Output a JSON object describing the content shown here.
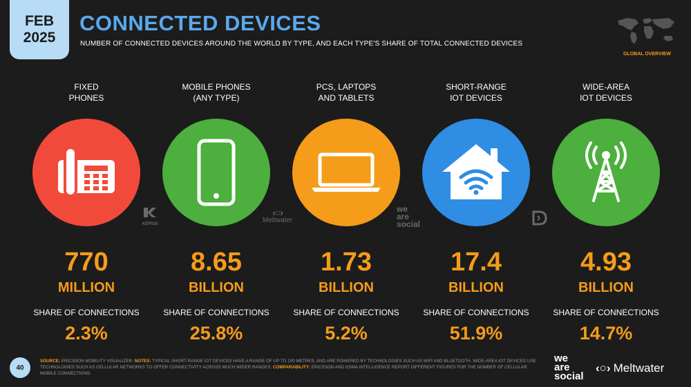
{
  "date_badge": {
    "month": "FEB",
    "year": "2025"
  },
  "title": "CONNECTED DEVICES",
  "subtitle": "NUMBER OF CONNECTED DEVICES AROUND THE WORLD BY TYPE, AND EACH TYPE'S SHARE OF TOTAL CONNECTED DEVICES",
  "global_label": "GLOBAL OVERVIEW",
  "columns": [
    {
      "category_line1": "FIXED",
      "category_line2": "PHONES",
      "icon": "telephone-icon",
      "color": "#f24a3a",
      "value": "770",
      "unit": "MILLION",
      "share_label": "SHARE OF CONNECTIONS",
      "share": "2.3%"
    },
    {
      "category_line1": "MOBILE PHONES",
      "category_line2": "(ANY TYPE)",
      "icon": "smartphone-icon",
      "color": "#4caf3e",
      "value": "8.65",
      "unit": "BILLION",
      "share_label": "SHARE OF CONNECTIONS",
      "share": "25.8%"
    },
    {
      "category_line1": "PCS, LAPTOPS",
      "category_line2": "AND TABLETS",
      "icon": "laptop-icon",
      "color": "#f59c1a",
      "value": "1.73",
      "unit": "BILLION",
      "share_label": "SHARE OF CONNECTIONS",
      "share": "5.2%"
    },
    {
      "category_line1": "SHORT-RANGE",
      "category_line2": "IOT DEVICES",
      "icon": "smart-home-wifi-icon",
      "color": "#2f8de4",
      "value": "17.4",
      "unit": "BILLION",
      "share_label": "SHARE OF CONNECTIONS",
      "share": "51.9%"
    },
    {
      "category_line1": "WIDE-AREA",
      "category_line2": "IOT DEVICES",
      "icon": "radio-tower-icon",
      "color": "#4caf3e",
      "value": "4.93",
      "unit": "BILLION",
      "share_label": "SHARE OF CONNECTIONS",
      "share": "14.7%"
    }
  ],
  "watermarks": {
    "kepios": "KEPIOS",
    "meltwater": "Meltwater",
    "we": "we",
    "are": "are",
    "social": "social"
  },
  "footer": {
    "page_number": "40",
    "source_key": "SOURCE:",
    "source_text": " ERICSSON MOBILITY VISUALIZER. ",
    "notes_key": "NOTES:",
    "notes_text": " TYPICAL SHORT-RANGE IOT DEVICES HAVE A RANGE OF UP TO 100 METRES, AND ARE POWERED BY TECHNOLOGIES SUCH AS WIFI AND BLUETOOTH. WIDE-AREA IOT DEVICES USE TECHNOLOGIES SUCH AS CELLULAR NETWORKS TO OFFER CONNECTIVITY ACROSS MUCH WIDER RANGES. ",
    "comparability_key": "COMPARABILITY:",
    "comparability_text": " ERICSSON AND GSMA INTELLIGENCE REPORT DIFFERENT FIGURES FOR THE NUMBER OF CELLULAR MOBILE CONNECTIONS.",
    "we": "we",
    "are": "are",
    "social": "social",
    "meltwater": "Meltwater"
  }
}
